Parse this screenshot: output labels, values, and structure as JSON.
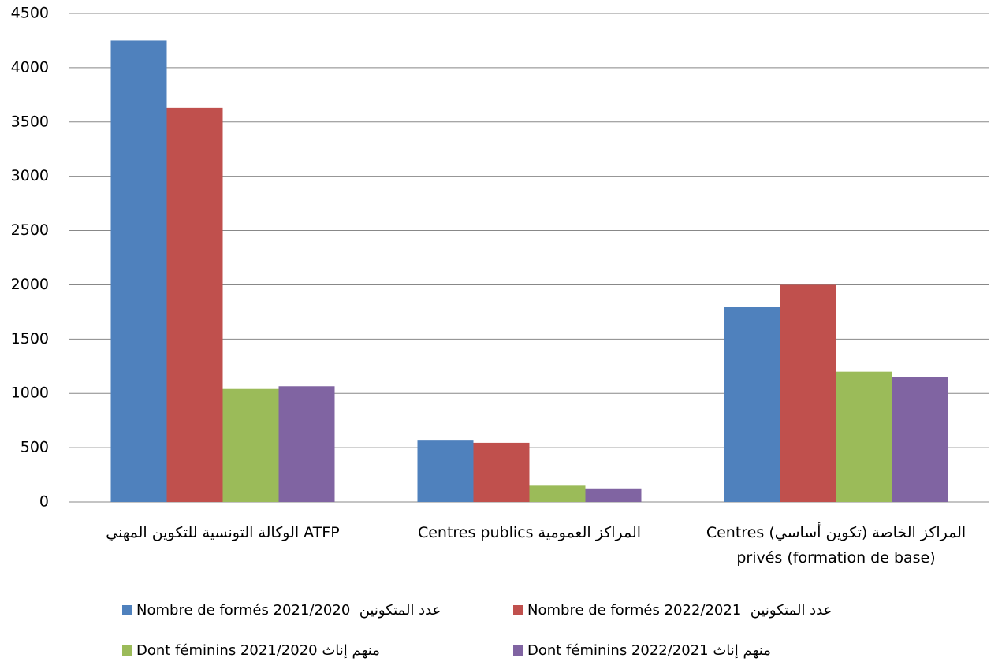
{
  "chart_data": {
    "type": "bar",
    "categories": [
      "الوكالة التونسية للتكوين المهني  ATFP",
      "Centres publics   المراكز العمومية",
      "Centres   المراكز الخاصة (تكوين أساسي)\nprivés (formation de base)"
    ],
    "series": [
      {
        "name": "Nombre de formés 2021/2020  عدد المتكونين",
        "color": "#4f81bd",
        "values": [
          4250,
          565,
          1795
        ]
      },
      {
        "name": "Nombre de formés 2022/2021  عدد المتكونين",
        "color": "#c0504d",
        "values": [
          3630,
          545,
          2000
        ]
      },
      {
        "name": "Dont féminins 2021/2020 منهم إناث",
        "color": "#9bbb59",
        "values": [
          1040,
          150,
          1200
        ]
      },
      {
        "name": "Dont féminins 2022/2021 منهم إناث",
        "color": "#8064a2",
        "values": [
          1065,
          125,
          1150
        ]
      }
    ],
    "ylim": [
      0,
      4500
    ],
    "yticks": [
      0,
      500,
      1000,
      1500,
      2000,
      2500,
      3000,
      3500,
      4000,
      4500
    ],
    "grid": true
  }
}
